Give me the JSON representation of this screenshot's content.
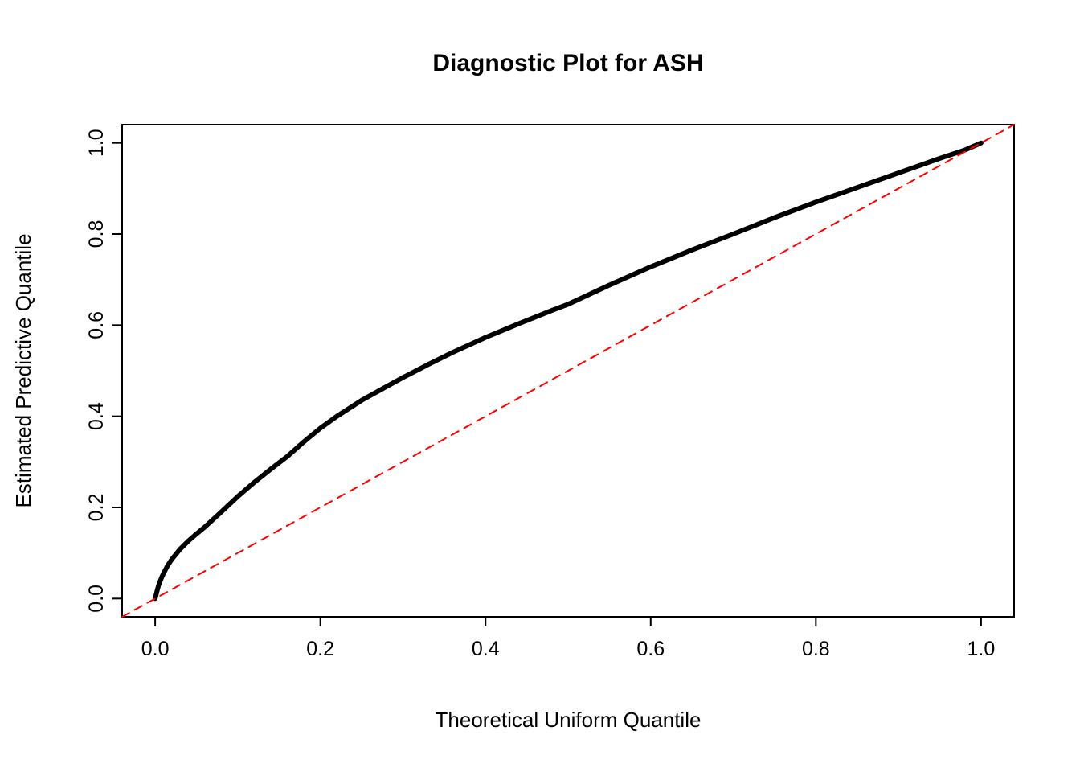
{
  "chart_data": {
    "type": "line",
    "title": "Diagnostic Plot for ASH",
    "xlabel": "Theoretical Uniform Quantile",
    "ylabel": "Estimated Predictive Quantile",
    "xlim": [
      -0.04,
      1.04
    ],
    "ylim": [
      -0.04,
      1.04
    ],
    "grid": false,
    "legend": "none",
    "x_ticks": [
      0.0,
      0.2,
      0.4,
      0.6,
      0.8,
      1.0
    ],
    "x_tick_labels": [
      "0.0",
      "0.2",
      "0.4",
      "0.6",
      "0.8",
      "1.0"
    ],
    "y_ticks": [
      0.0,
      0.2,
      0.4,
      0.6,
      0.8,
      1.0
    ],
    "y_tick_labels": [
      "0.0",
      "0.2",
      "0.4",
      "0.6",
      "0.8",
      "1.0"
    ],
    "colors": {
      "curve": "#000000",
      "reference_line": "#ff0000",
      "frame": "#000000"
    },
    "series": [
      {
        "name": "estimated-predictive-quantile-curve",
        "color": "#000000",
        "width": 6,
        "dash": null,
        "x": [
          0.0,
          0.002,
          0.004,
          0.006,
          0.008,
          0.01,
          0.015,
          0.02,
          0.03,
          0.04,
          0.05,
          0.06,
          0.08,
          0.1,
          0.12,
          0.14,
          0.16,
          0.18,
          0.2,
          0.22,
          0.25,
          0.28,
          0.3,
          0.33,
          0.36,
          0.4,
          0.44,
          0.48,
          0.5,
          0.55,
          0.6,
          0.65,
          0.7,
          0.75,
          0.8,
          0.85,
          0.9,
          0.95,
          0.98,
          1.0
        ],
        "y": [
          0.0,
          0.015,
          0.028,
          0.038,
          0.047,
          0.055,
          0.072,
          0.086,
          0.108,
          0.126,
          0.142,
          0.157,
          0.19,
          0.224,
          0.255,
          0.284,
          0.312,
          0.344,
          0.374,
          0.4,
          0.435,
          0.465,
          0.485,
          0.513,
          0.54,
          0.573,
          0.603,
          0.632,
          0.646,
          0.688,
          0.728,
          0.765,
          0.8,
          0.836,
          0.87,
          0.902,
          0.934,
          0.966,
          0.984,
          1.0
        ]
      },
      {
        "name": "identity-reference-line",
        "color": "#ff0000",
        "width": 2,
        "dash": "10,8",
        "x": [
          -0.04,
          1.04
        ],
        "y": [
          -0.04,
          1.04
        ]
      }
    ]
  }
}
